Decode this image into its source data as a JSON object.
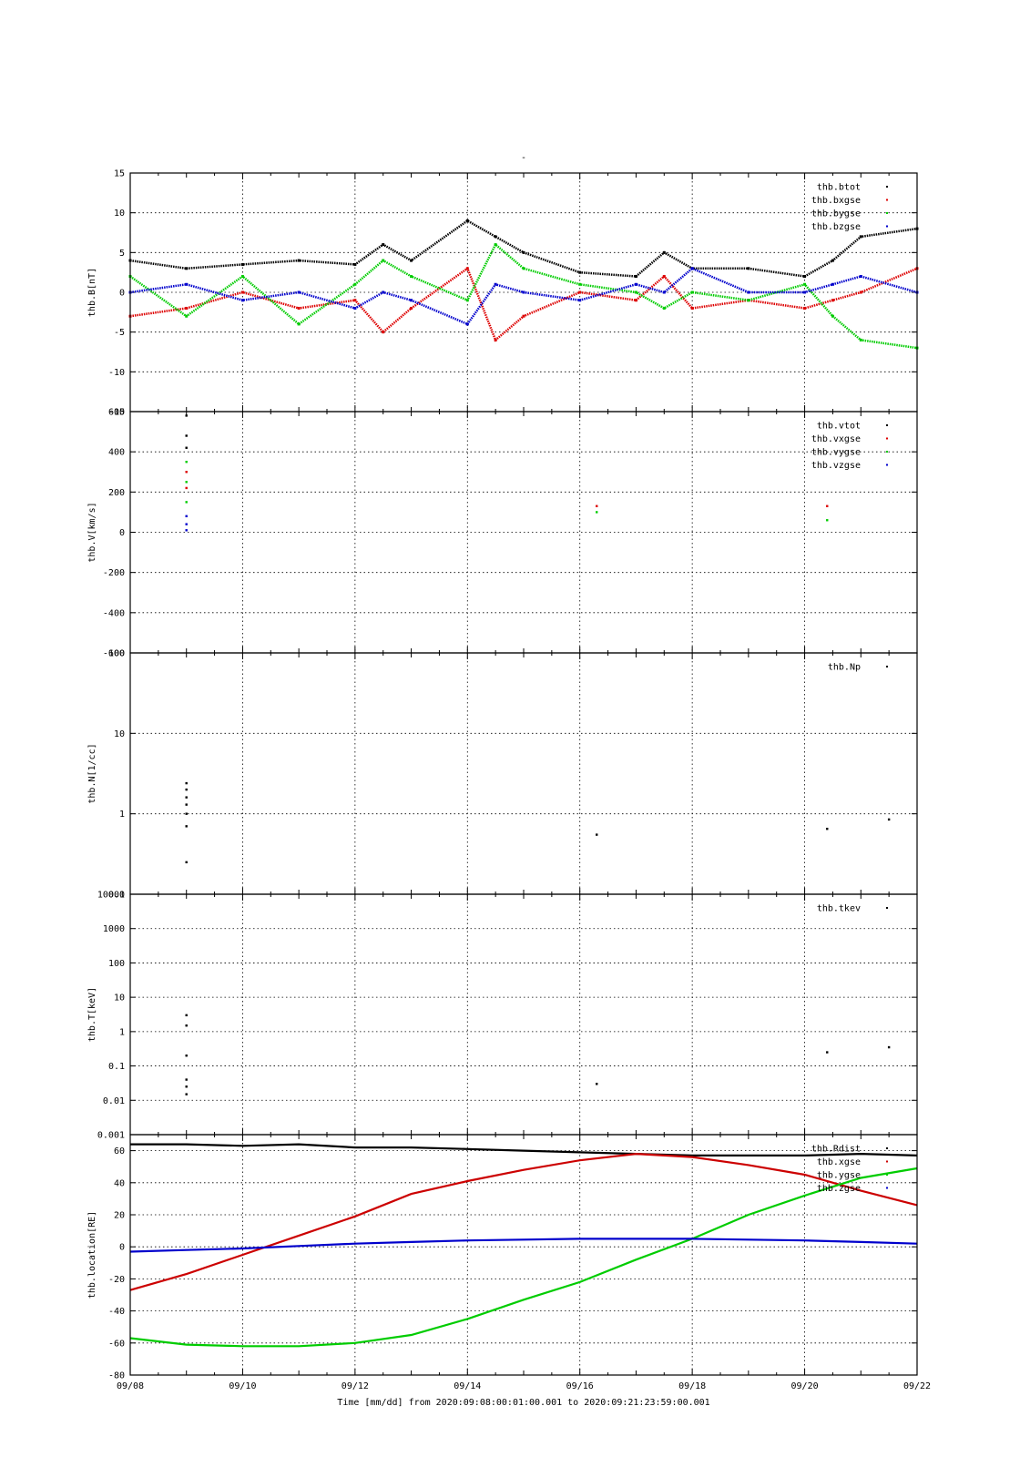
{
  "figure": {
    "title": "-",
    "time_range_label": "Time [mm/dd]  from 2020:09:08:00:01:00.001  to  2020:09:21:23:59:00.001"
  },
  "chart_data": [
    {
      "type": "scatter",
      "ylabel": "thb.B[nT]",
      "ylim": [
        -15,
        15
      ],
      "yticks": [
        "15",
        "10",
        "5",
        "0",
        "-5",
        "-10",
        "-15"
      ],
      "grid": true,
      "legend": "top-right",
      "series": [
        {
          "name": "thb.btot",
          "color": "#000000",
          "x": [
            "09/08",
            "09/09",
            "09/10",
            "09/11",
            "09/12",
            "09/12.5",
            "09/13",
            "09/14",
            "09/14.5",
            "09/15",
            "09/16",
            "09/17",
            "09/17.5",
            "09/18",
            "09/19",
            "09/20",
            "09/20.5",
            "09/21",
            "09/22"
          ],
          "values": [
            4,
            3,
            3.5,
            4,
            3.5,
            6,
            4,
            9,
            7,
            5,
            2.5,
            2,
            5,
            3,
            3,
            2,
            4,
            7,
            8
          ]
        },
        {
          "name": "thb.bxgse",
          "color": "#dd0000",
          "x": [
            "09/08",
            "09/09",
            "09/10",
            "09/11",
            "09/12",
            "09/12.5",
            "09/13",
            "09/14",
            "09/14.5",
            "09/15",
            "09/16",
            "09/17",
            "09/17.5",
            "09/18",
            "09/19",
            "09/20",
            "09/20.5",
            "09/21",
            "09/22"
          ],
          "values": [
            -3,
            -2,
            0,
            -2,
            -1,
            -5,
            -2,
            3,
            -6,
            -3,
            0,
            -1,
            2,
            -2,
            -1,
            -2,
            -1,
            0,
            3
          ]
        },
        {
          "name": "thb.bygse",
          "color": "#00cc00",
          "x": [
            "09/08",
            "09/09",
            "09/10",
            "09/11",
            "09/12",
            "09/12.5",
            "09/13",
            "09/14",
            "09/14.5",
            "09/15",
            "09/16",
            "09/17",
            "09/17.5",
            "09/18",
            "09/19",
            "09/20",
            "09/20.5",
            "09/21",
            "09/22"
          ],
          "values": [
            2,
            -3,
            2,
            -4,
            1,
            4,
            2,
            -1,
            6,
            3,
            1,
            0,
            -2,
            0,
            -1,
            1,
            -3,
            -6,
            -7
          ]
        },
        {
          "name": "thb.bzgse",
          "color": "#0000cc",
          "x": [
            "09/08",
            "09/09",
            "09/10",
            "09/11",
            "09/12",
            "09/12.5",
            "09/13",
            "09/14",
            "09/14.5",
            "09/15",
            "09/16",
            "09/17",
            "09/17.5",
            "09/18",
            "09/19",
            "09/20",
            "09/20.5",
            "09/21",
            "09/22"
          ],
          "values": [
            0,
            1,
            -1,
            0,
            -2,
            0,
            -1,
            -4,
            1,
            0,
            -1,
            1,
            0,
            3,
            0,
            0,
            1,
            2,
            0
          ]
        }
      ]
    },
    {
      "type": "scatter",
      "ylabel": "thb.V[km/s]",
      "ylim": [
        -600,
        600
      ],
      "yticks": [
        "600",
        "400",
        "200",
        "0",
        "-200",
        "-400",
        "-600"
      ],
      "grid": true,
      "legend": "top-right",
      "series": [
        {
          "name": "thb.vtot",
          "color": "#000000",
          "x": [
            "09/09",
            "09/09",
            "09/09"
          ],
          "values": [
            580,
            480,
            420
          ]
        },
        {
          "name": "thb.vxgse",
          "color": "#dd0000",
          "x": [
            "09/09",
            "09/09",
            "09/16.3",
            "09/20.4"
          ],
          "values": [
            300,
            220,
            130,
            130
          ]
        },
        {
          "name": "thb.vygse",
          "color": "#00cc00",
          "x": [
            "09/09",
            "09/09",
            "09/09",
            "09/16.3",
            "09/20.4"
          ],
          "values": [
            350,
            250,
            150,
            100,
            60
          ]
        },
        {
          "name": "thb.vzgse",
          "color": "#0000cc",
          "x": [
            "09/09",
            "09/09",
            "09/09"
          ],
          "values": [
            80,
            40,
            10
          ]
        }
      ]
    },
    {
      "type": "scatter",
      "ylabel": "thb.N[1/cc]",
      "yscale": "log",
      "ylim": [
        0.1,
        100
      ],
      "yticks": [
        "100",
        "10",
        "1",
        "0.1"
      ],
      "grid": true,
      "legend": "top-right",
      "series": [
        {
          "name": "thb.Np",
          "color": "#000000",
          "x": [
            "09/09",
            "09/09",
            "09/09",
            "09/09",
            "09/09",
            "09/09",
            "09/09",
            "09/16.3",
            "09/20.4",
            "09/21.5"
          ],
          "values": [
            2.4,
            2.0,
            1.6,
            1.3,
            1.0,
            0.7,
            0.25,
            0.55,
            0.65,
            0.85
          ]
        }
      ]
    },
    {
      "type": "scatter",
      "ylabel": "thb.T[keV]",
      "yscale": "log",
      "ylim": [
        0.001,
        10000
      ],
      "yticks": [
        "10000",
        "1000",
        "100",
        "10",
        "1",
        "0.1",
        "0.01",
        "0.001"
      ],
      "grid": true,
      "legend": "top-right",
      "series": [
        {
          "name": "thb.tkev",
          "color": "#000000",
          "x": [
            "09/09",
            "09/09",
            "09/09",
            "09/09",
            "09/09",
            "09/09",
            "09/16.3",
            "09/20.4",
            "09/21.5"
          ],
          "values": [
            3,
            1.5,
            0.2,
            0.04,
            0.025,
            0.015,
            0.03,
            0.25,
            0.35
          ]
        }
      ]
    },
    {
      "type": "line",
      "ylabel": "thb.location[RE]",
      "ylim": [
        -80,
        70
      ],
      "yticks": [
        "60",
        "40",
        "20",
        "0",
        "-20",
        "-40",
        "-60",
        "-80"
      ],
      "xticks": [
        "09/08",
        "09/10",
        "09/12",
        "09/14",
        "09/16",
        "09/18",
        "09/20",
        "09/22"
      ],
      "grid": true,
      "legend": "top-right",
      "series": [
        {
          "name": "thb.Rdist",
          "color": "#000000",
          "x": [
            "09/08",
            "09/09",
            "09/10",
            "09/11",
            "09/12",
            "09/13",
            "09/14",
            "09/15",
            "09/16",
            "09/17",
            "09/18",
            "09/19",
            "09/20",
            "09/21",
            "09/22"
          ],
          "values": [
            64,
            64,
            63,
            64,
            62,
            62,
            61,
            60,
            59,
            58,
            57,
            57,
            57,
            58,
            57
          ]
        },
        {
          "name": "thb.xgse",
          "color": "#cc0000",
          "x": [
            "09/08",
            "09/09",
            "09/10",
            "09/11",
            "09/12",
            "09/13",
            "09/14",
            "09/15",
            "09/16",
            "09/17",
            "09/18",
            "09/19",
            "09/20",
            "09/21",
            "09/22"
          ],
          "values": [
            -27,
            -17,
            -5,
            7,
            19,
            33,
            41,
            48,
            54,
            58,
            56,
            51,
            45,
            35,
            26
          ]
        },
        {
          "name": "thb.ygse",
          "color": "#00cc00",
          "x": [
            "09/08",
            "09/09",
            "09/10",
            "09/11",
            "09/12",
            "09/13",
            "09/14",
            "09/15",
            "09/16",
            "09/17",
            "09/18",
            "09/19",
            "09/20",
            "09/21",
            "09/22"
          ],
          "values": [
            -57,
            -61,
            -62,
            -62,
            -60,
            -55,
            -45,
            -33,
            -22,
            -8,
            5,
            20,
            32,
            43,
            49
          ]
        },
        {
          "name": "thb.zgse",
          "color": "#0000cc",
          "x": [
            "09/08",
            "09/09",
            "09/10",
            "09/11",
            "09/12",
            "09/13",
            "09/14",
            "09/15",
            "09/16",
            "09/17",
            "09/18",
            "09/19",
            "09/20",
            "09/21",
            "09/22"
          ],
          "values": [
            -3,
            -2,
            -1,
            0.5,
            2,
            3,
            4,
            4.5,
            5,
            5,
            5,
            4.5,
            4,
            3,
            2
          ]
        }
      ]
    }
  ]
}
